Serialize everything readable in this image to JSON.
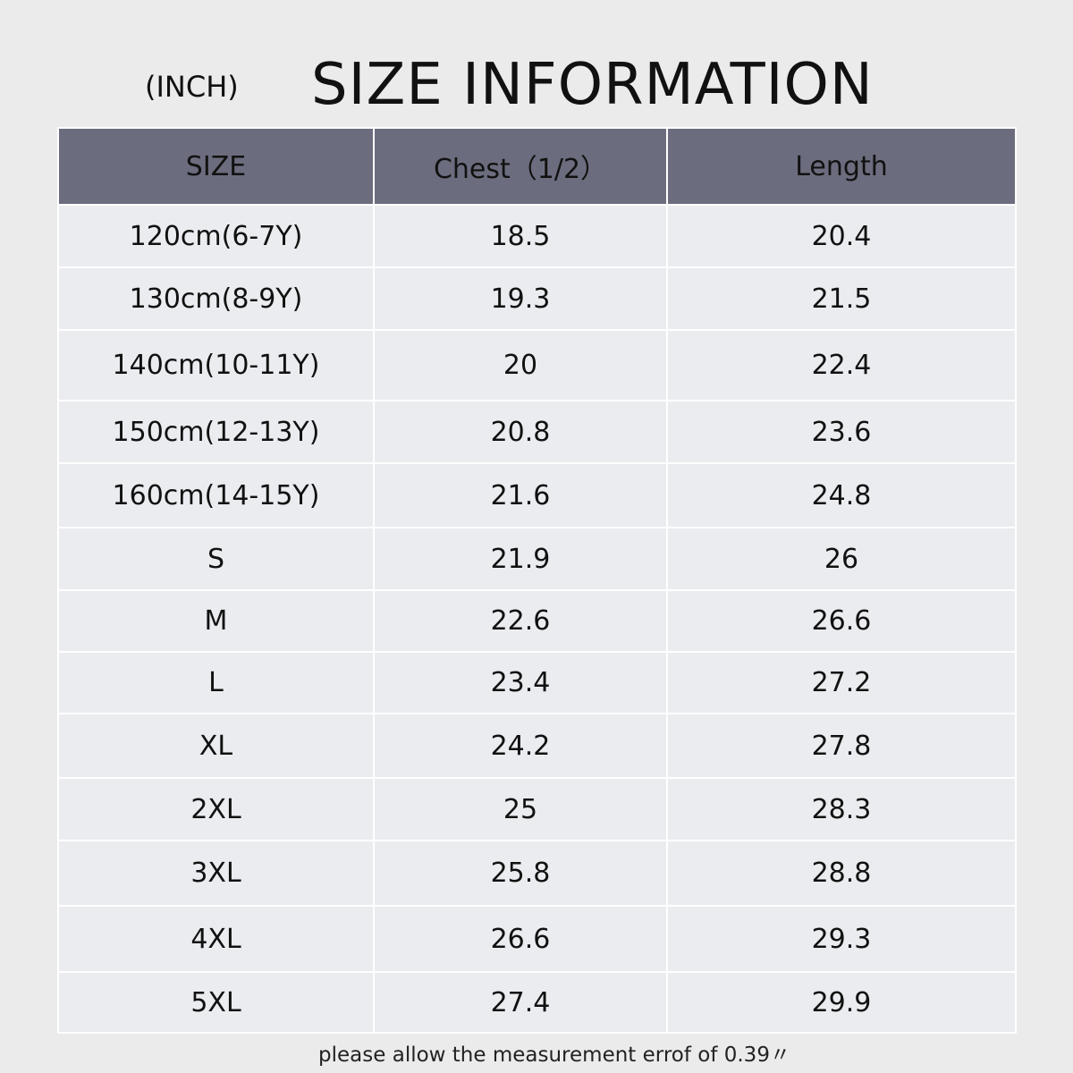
{
  "header": {
    "unit": "(INCH)",
    "title": "SIZE INFORMATION"
  },
  "colors": {
    "header_bg": "#6b6d7e",
    "row_bg": "#ebecf0",
    "page_bg": "#ebebeb"
  },
  "table": {
    "columns": [
      "SIZE",
      "Chest（1/2）",
      "Length"
    ],
    "rows": [
      [
        "120cm(6-7Y)",
        "18.5",
        "20.4"
      ],
      [
        "130cm(8-9Y)",
        "19.3",
        "21.5"
      ],
      [
        "140cm(10-11Y)",
        "20",
        "22.4"
      ],
      [
        "150cm(12-13Y)",
        "20.8",
        "23.6"
      ],
      [
        "160cm(14-15Y)",
        "21.6",
        "24.8"
      ],
      [
        "S",
        "21.9",
        "26"
      ],
      [
        "M",
        "22.6",
        "26.6"
      ],
      [
        "L",
        "23.4",
        "27.2"
      ],
      [
        "XL",
        "24.2",
        "27.8"
      ],
      [
        "2XL",
        "25",
        "28.3"
      ],
      [
        "3XL",
        "25.8",
        "28.8"
      ],
      [
        "4XL",
        "26.6",
        "29.3"
      ],
      [
        "5XL",
        "27.4",
        "29.9"
      ]
    ]
  },
  "footer": {
    "note": "please allow the measurement errof of 0.39〃"
  }
}
